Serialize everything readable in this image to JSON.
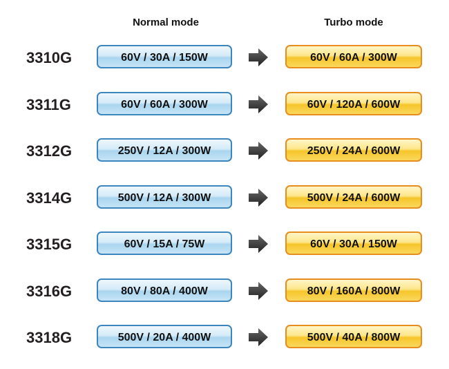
{
  "header": {
    "normal": "Normal mode",
    "turbo": "Turbo mode"
  },
  "rows": [
    {
      "model": "3310G",
      "normal": "60V / 30A / 150W",
      "turbo": "60V / 60A / 300W"
    },
    {
      "model": "3311G",
      "normal": "60V / 60A / 300W",
      "turbo": "60V / 120A / 600W"
    },
    {
      "model": "3312G",
      "normal": "250V / 12A / 300W",
      "turbo": "250V / 24A / 600W"
    },
    {
      "model": "3314G",
      "normal": "500V / 12A / 300W",
      "turbo": "500V / 24A / 600W"
    },
    {
      "model": "3315G",
      "normal": "60V / 15A / 75W",
      "turbo": "60V / 30A / 150W"
    },
    {
      "model": "3316G",
      "normal": "80V / 80A / 400W",
      "turbo": "80V / 160A / 800W"
    },
    {
      "model": "3318G",
      "normal": "500V / 20A / 400W",
      "turbo": "500V / 40A / 800W"
    }
  ]
}
